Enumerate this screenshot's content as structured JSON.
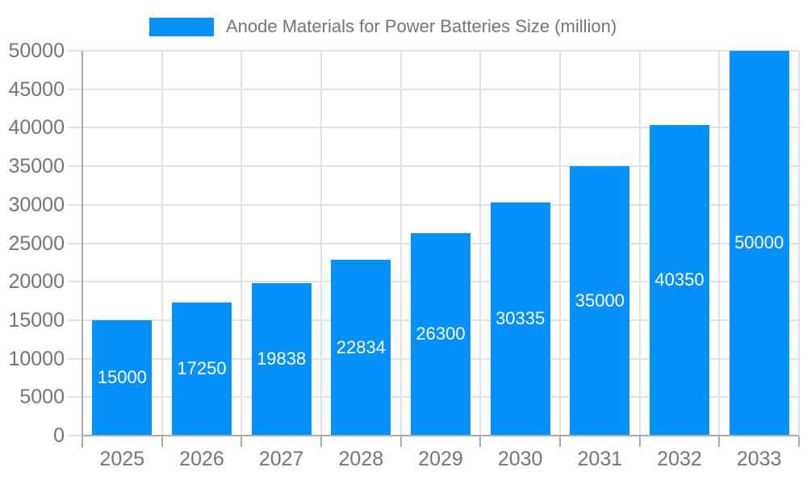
{
  "legend": {
    "label": "Anode Materials for Power Batteries Size (million)"
  },
  "colors": {
    "bar": "#0690fb",
    "grid": "#e2e2e2",
    "axis": "#ababab",
    "text": "#757575",
    "bar_label": "#ffffff",
    "background": "#ffffff"
  },
  "chart_data": {
    "type": "bar",
    "title": "Anode Materials for Power Batteries Size (million)",
    "categories": [
      "2025",
      "2026",
      "2027",
      "2028",
      "2029",
      "2030",
      "2031",
      "2032",
      "2033"
    ],
    "values": [
      15000,
      17250,
      19838,
      22834,
      26300,
      30335,
      35000,
      40350,
      50000
    ],
    "data_labels": [
      "15000",
      "17250",
      "19838",
      "22834",
      "26300",
      "30335",
      "35000",
      "40350",
      "50000"
    ],
    "xlabel": "",
    "ylabel": "",
    "ylim": [
      0,
      50000
    ],
    "ytick_step": 5000,
    "ytick_labels": [
      "0",
      "5000",
      "10000",
      "15000",
      "20000",
      "25000",
      "30000",
      "35000",
      "40000",
      "45000",
      "50000"
    ],
    "grid": true,
    "legend_position": "top",
    "bar_color": "#0690fb",
    "data_label_position": "inside-center"
  }
}
